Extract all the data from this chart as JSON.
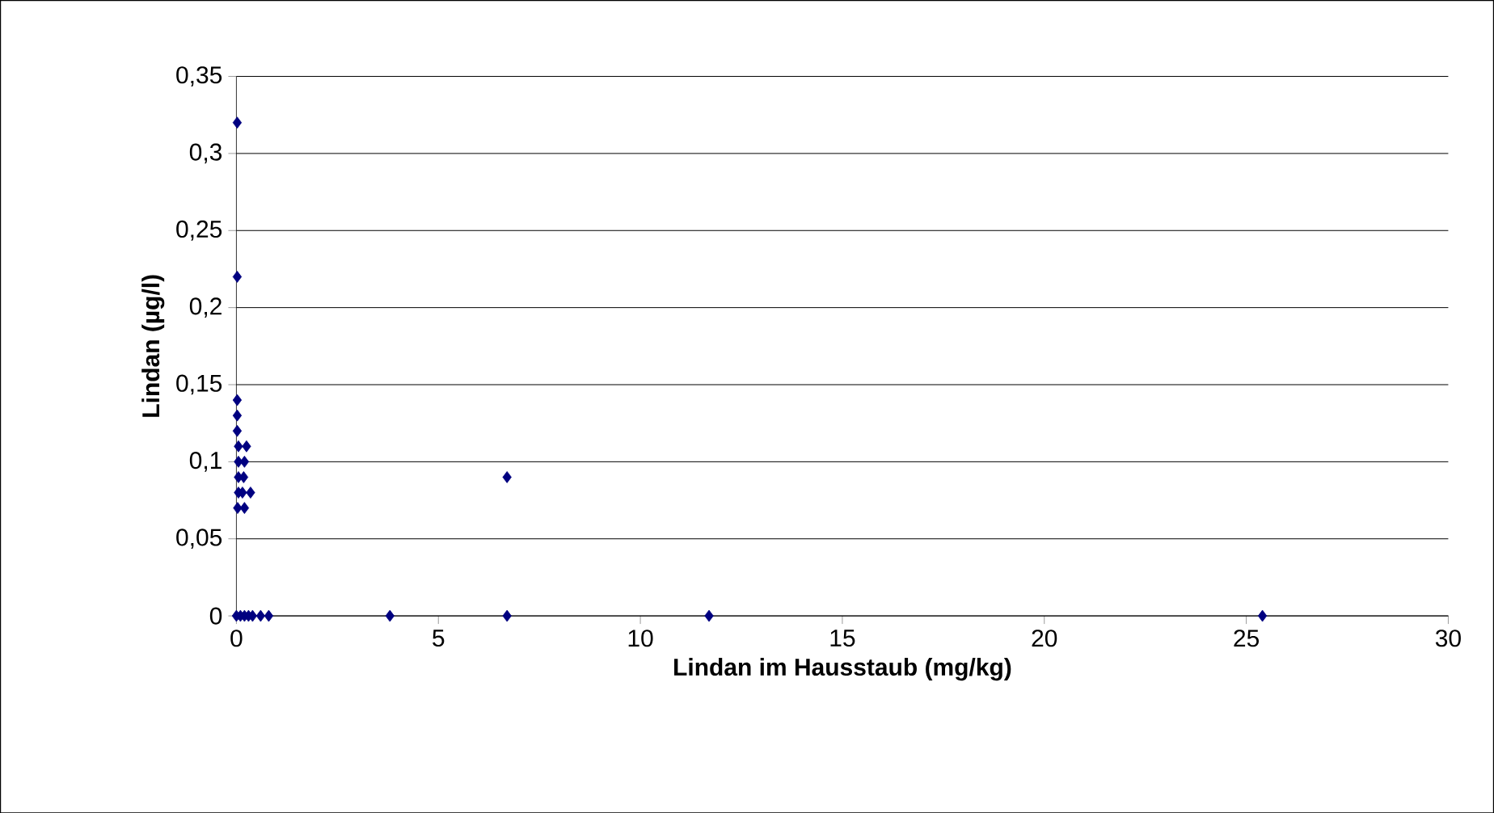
{
  "chart_data": {
    "type": "scatter",
    "xlabel": "Lindan im Hausstaub (mg/kg)",
    "ylabel": "Lindan (µg/l)",
    "marker": "diamond",
    "grid": "y",
    "xlim": [
      0,
      30
    ],
    "xticks": [
      0,
      5,
      10,
      15,
      20,
      25,
      30
    ],
    "ylim": [
      0,
      0.35
    ],
    "yticks": [
      {
        "value": 0,
        "label": "0"
      },
      {
        "value": 0.05,
        "label": "0,05"
      },
      {
        "value": 0.1,
        "label": "0,1"
      },
      {
        "value": 0.15,
        "label": "0,15"
      },
      {
        "value": 0.2,
        "label": "0,2"
      },
      {
        "value": 0.25,
        "label": "0,25"
      },
      {
        "value": 0.3,
        "label": "0,3"
      },
      {
        "value": 0.35,
        "label": "0,35"
      }
    ],
    "series": [
      {
        "color": "#000080",
        "x": [
          0.02,
          0.02,
          0.02,
          0.02,
          0.02,
          0.05,
          0.25,
          0.05,
          0.2,
          0.05,
          0.18,
          0.05,
          0.15,
          0.35,
          0.03,
          0.2,
          6.7,
          0,
          0.1,
          0.2,
          0.3,
          0.4,
          0.6,
          0.8,
          3.8,
          6.7,
          11.7,
          25.4
        ],
        "values": [
          0.32,
          0.22,
          0.14,
          0.13,
          0.12,
          0.11,
          0.11,
          0.1,
          0.1,
          0.09,
          0.09,
          0.08,
          0.08,
          0.08,
          0.07,
          0.07,
          0.09,
          0,
          0,
          0,
          0,
          0,
          0,
          0,
          0,
          0,
          0,
          0
        ]
      }
    ]
  }
}
